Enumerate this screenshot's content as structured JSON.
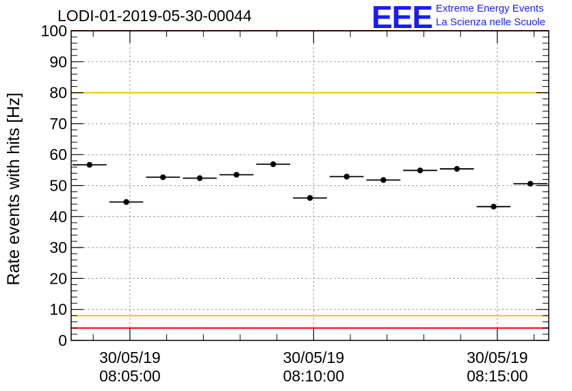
{
  "header": {
    "run_title": "LODI-01-2019-05-30-00044",
    "logo_text": "EEE",
    "logo_line1": "Extreme Energy Events",
    "logo_line2": "La Scienza nelle Scuole"
  },
  "colors": {
    "limit_red": "#ff0000",
    "limit_yellow": "#f2c200",
    "points": "#000000",
    "grid": "#9a9a9a",
    "logo": "#1a1aff"
  },
  "chart_data": {
    "type": "scatter",
    "title": "LODI-01-2019-05-30-00044",
    "xlabel": "",
    "ylabel": "Rate events with hits [Hz]",
    "ylim": [
      0,
      100
    ],
    "y_ticks": [
      0,
      10,
      20,
      30,
      40,
      50,
      60,
      70,
      80,
      90,
      100
    ],
    "xlim_minutes": [
      3.4,
      16.4
    ],
    "x_ticks": [
      {
        "minute": 5,
        "date": "30/05/19",
        "time": "08:05:00"
      },
      {
        "minute": 10,
        "date": "30/05/19",
        "time": "08:10:00"
      },
      {
        "minute": 15,
        "date": "30/05/19",
        "time": "08:15:00"
      }
    ],
    "bin_width_minutes": 1.0,
    "points": [
      {
        "minute": 3.9,
        "value": 56.7
      },
      {
        "minute": 4.9,
        "value": 44.7
      },
      {
        "minute": 5.9,
        "value": 52.7
      },
      {
        "minute": 6.9,
        "value": 52.4
      },
      {
        "minute": 7.9,
        "value": 53.5
      },
      {
        "minute": 8.9,
        "value": 56.9
      },
      {
        "minute": 9.9,
        "value": 46.0
      },
      {
        "minute": 10.9,
        "value": 52.9
      },
      {
        "minute": 11.9,
        "value": 51.8
      },
      {
        "minute": 12.9,
        "value": 54.9
      },
      {
        "minute": 13.9,
        "value": 55.4
      },
      {
        "minute": 14.9,
        "value": 43.2
      },
      {
        "minute": 15.9,
        "value": 50.6
      }
    ],
    "reference_lines": [
      {
        "value": 80,
        "color": "yellow"
      },
      {
        "value": 8,
        "color": "yellow"
      },
      {
        "value": 4,
        "color": "red"
      },
      {
        "value": 100,
        "color": "red"
      }
    ],
    "grid": true
  }
}
